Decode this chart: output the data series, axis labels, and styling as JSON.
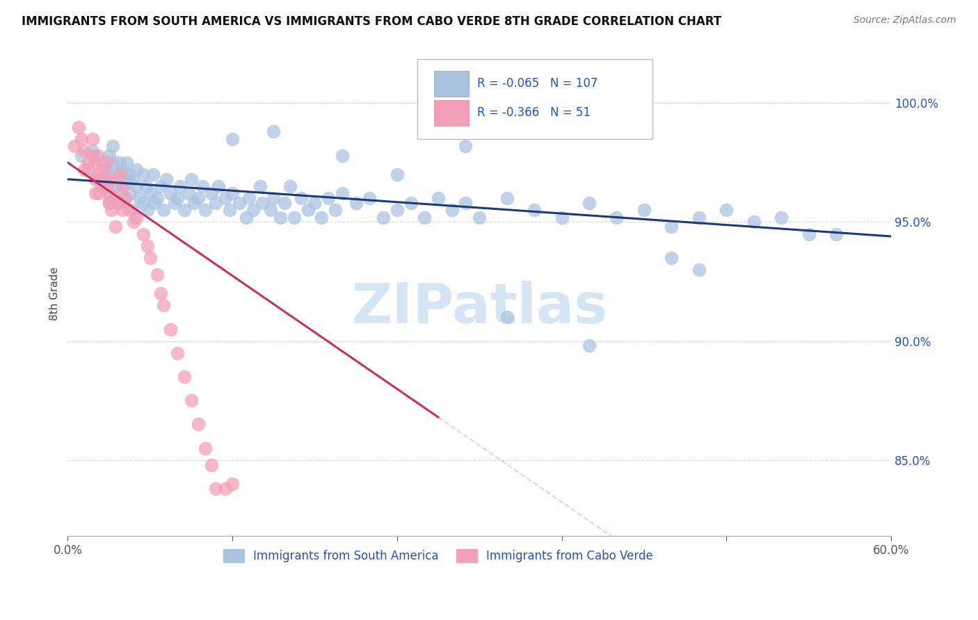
{
  "title": "IMMIGRANTS FROM SOUTH AMERICA VS IMMIGRANTS FROM CABO VERDE 8TH GRADE CORRELATION CHART",
  "source": "Source: ZipAtlas.com",
  "ylabel": "8th Grade",
  "y_tick_labels": [
    "100.0%",
    "95.0%",
    "90.0%",
    "85.0%"
  ],
  "y_tick_values": [
    1.0,
    0.95,
    0.9,
    0.85
  ],
  "x_lim": [
    0.0,
    0.6
  ],
  "y_lim": [
    0.818,
    1.022
  ],
  "r_blue": -0.065,
  "n_blue": 107,
  "r_pink": -0.366,
  "n_pink": 51,
  "blue_color": "#aac4e0",
  "pink_color": "#f2a0b8",
  "blue_line_color": "#1a3a7a",
  "pink_line_color": "#c8305a",
  "text_color": "#2255bb",
  "title_color": "#111111",
  "watermark_color": "#d5e5f5",
  "legend_label_blue": "Immigrants from South America",
  "legend_label_pink": "Immigrants from Cabo Verde",
  "blue_points_x": [
    0.01,
    0.018,
    0.022,
    0.025,
    0.028,
    0.028,
    0.028,
    0.03,
    0.03,
    0.032,
    0.033,
    0.033,
    0.035,
    0.035,
    0.038,
    0.038,
    0.04,
    0.04,
    0.042,
    0.042,
    0.043,
    0.045,
    0.045,
    0.047,
    0.048,
    0.05,
    0.05,
    0.052,
    0.055,
    0.055,
    0.057,
    0.058,
    0.06,
    0.062,
    0.063,
    0.065,
    0.068,
    0.07,
    0.072,
    0.075,
    0.078,
    0.08,
    0.082,
    0.085,
    0.088,
    0.09,
    0.092,
    0.095,
    0.098,
    0.1,
    0.105,
    0.108,
    0.11,
    0.115,
    0.118,
    0.12,
    0.125,
    0.13,
    0.132,
    0.135,
    0.14,
    0.142,
    0.148,
    0.15,
    0.155,
    0.158,
    0.162,
    0.165,
    0.17,
    0.175,
    0.18,
    0.185,
    0.19,
    0.195,
    0.2,
    0.21,
    0.22,
    0.23,
    0.24,
    0.25,
    0.26,
    0.27,
    0.28,
    0.29,
    0.3,
    0.32,
    0.34,
    0.36,
    0.38,
    0.4,
    0.42,
    0.44,
    0.46,
    0.48,
    0.5,
    0.52,
    0.54,
    0.44,
    0.46,
    0.56,
    0.38,
    0.32,
    0.2,
    0.24,
    0.29,
    0.15,
    0.12
  ],
  "blue_points_y": [
    0.978,
    0.98,
    0.968,
    0.975,
    0.97,
    0.965,
    0.972,
    0.978,
    0.96,
    0.968,
    0.975,
    0.982,
    0.965,
    0.97,
    0.958,
    0.975,
    0.965,
    0.972,
    0.96,
    0.968,
    0.975,
    0.962,
    0.97,
    0.968,
    0.955,
    0.965,
    0.972,
    0.96,
    0.97,
    0.958,
    0.965,
    0.955,
    0.962,
    0.97,
    0.958,
    0.96,
    0.965,
    0.955,
    0.968,
    0.962,
    0.958,
    0.96,
    0.965,
    0.955,
    0.962,
    0.968,
    0.958,
    0.96,
    0.965,
    0.955,
    0.962,
    0.958,
    0.965,
    0.96,
    0.955,
    0.962,
    0.958,
    0.952,
    0.96,
    0.955,
    0.965,
    0.958,
    0.955,
    0.96,
    0.952,
    0.958,
    0.965,
    0.952,
    0.96,
    0.955,
    0.958,
    0.952,
    0.96,
    0.955,
    0.962,
    0.958,
    0.96,
    0.952,
    0.955,
    0.958,
    0.952,
    0.96,
    0.955,
    0.958,
    0.952,
    0.96,
    0.955,
    0.952,
    0.958,
    0.952,
    0.955,
    0.948,
    0.952,
    0.955,
    0.95,
    0.952,
    0.945,
    0.935,
    0.93,
    0.945,
    0.898,
    0.91,
    0.978,
    0.97,
    0.982,
    0.988,
    0.985
  ],
  "pink_points_x": [
    0.005,
    0.008,
    0.01,
    0.012,
    0.015,
    0.015,
    0.018,
    0.018,
    0.02,
    0.02,
    0.022,
    0.022,
    0.022,
    0.025,
    0.025,
    0.028,
    0.028,
    0.03,
    0.03,
    0.032,
    0.032,
    0.035,
    0.038,
    0.038,
    0.04,
    0.04,
    0.042,
    0.045,
    0.048,
    0.05,
    0.055,
    0.058,
    0.06,
    0.065,
    0.068,
    0.07,
    0.075,
    0.08,
    0.085,
    0.09,
    0.095,
    0.1,
    0.105,
    0.108,
    0.115,
    0.12,
    0.03,
    0.035,
    0.025,
    0.02,
    0.012
  ],
  "pink_points_y": [
    0.982,
    0.99,
    0.985,
    0.98,
    0.975,
    0.972,
    0.978,
    0.985,
    0.975,
    0.968,
    0.978,
    0.97,
    0.962,
    0.972,
    0.965,
    0.975,
    0.968,
    0.962,
    0.958,
    0.968,
    0.955,
    0.96,
    0.97,
    0.958,
    0.965,
    0.955,
    0.96,
    0.955,
    0.95,
    0.952,
    0.945,
    0.94,
    0.935,
    0.928,
    0.92,
    0.915,
    0.905,
    0.895,
    0.885,
    0.875,
    0.865,
    0.855,
    0.848,
    0.838,
    0.838,
    0.84,
    0.958,
    0.948,
    0.965,
    0.962,
    0.972
  ],
  "pink_line_x_end": 0.27
}
